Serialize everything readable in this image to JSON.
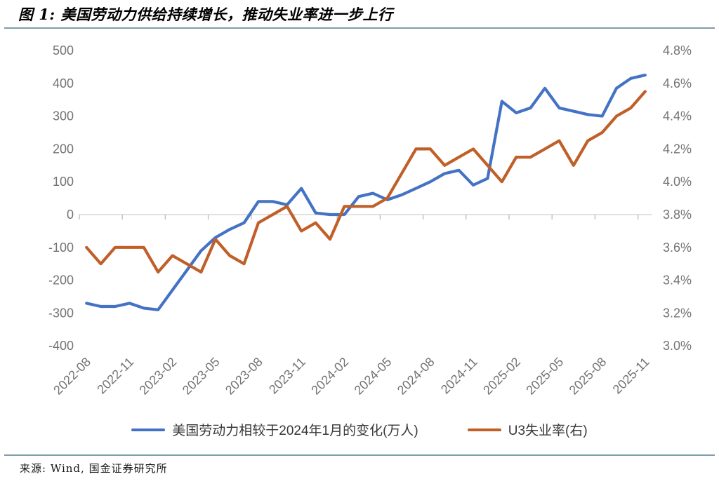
{
  "header": {
    "title": "图 1: 美国劳动力供给持续增长，推动失业率进一步上行"
  },
  "footer": {
    "source": "来源: Wind, 国金证券研究所"
  },
  "colors": {
    "rule": "#7E9DAB",
    "labor_force_line": "#4472C4",
    "u3_line": "#C05F28",
    "axis_text": "#737373",
    "zero_gridline": "#D9D9D9"
  },
  "chart_data": {
    "type": "line",
    "title": "",
    "grid": "zero-line-only",
    "legend_position": "bottom",
    "x": [
      "2022-08",
      "2022-09",
      "2022-10",
      "2022-11",
      "2022-12",
      "2023-01",
      "2023-02",
      "2023-03",
      "2023-04",
      "2023-05",
      "2023-06",
      "2023-07",
      "2023-08",
      "2023-09",
      "2023-10",
      "2023-11",
      "2023-12",
      "2024-01",
      "2024-02",
      "2024-03",
      "2024-04",
      "2024-05",
      "2024-06",
      "2024-07",
      "2024-08",
      "2024-09",
      "2024-10",
      "2024-11",
      "2024-12",
      "2025-01",
      "2025-02",
      "2025-03",
      "2025-04",
      "2025-05",
      "2025-06",
      "2025-07",
      "2025-08",
      "2025-09",
      "2025-10",
      "2025-11"
    ],
    "x_tick_labels": [
      "2022-08",
      "2022-11",
      "2023-02",
      "2023-05",
      "2023-08",
      "2023-11",
      "2024-02",
      "2024-05",
      "2024-08",
      "2024-11",
      "2025-02",
      "2025-05",
      "2025-08",
      "2025-11"
    ],
    "series": [
      {
        "name": "美国劳动力相较于2024年1月的变化(万人)",
        "axis": "left",
        "color": "#4472C4",
        "values": [
          -270,
          -280,
          -280,
          -270,
          -285,
          -290,
          -230,
          -170,
          -110,
          -70,
          -45,
          -25,
          40,
          40,
          30,
          80,
          5,
          0,
          0,
          55,
          65,
          45,
          60,
          80,
          100,
          125,
          135,
          90,
          110,
          345,
          310,
          325,
          385,
          325,
          315,
          305,
          300,
          385,
          415,
          425
        ]
      },
      {
        "name": "U3失业率(右)",
        "axis": "right",
        "color": "#C05F28",
        "values": [
          3.6,
          3.5,
          3.6,
          3.6,
          3.6,
          3.45,
          3.55,
          3.5,
          3.45,
          3.65,
          3.55,
          3.5,
          3.75,
          3.8,
          3.85,
          3.7,
          3.75,
          3.65,
          3.85,
          3.85,
          3.85,
          3.9,
          4.05,
          4.2,
          4.2,
          4.1,
          4.15,
          4.2,
          4.1,
          4.0,
          4.15,
          4.15,
          4.2,
          4.25,
          4.1,
          4.25,
          4.3,
          4.4,
          4.45,
          4.55
        ]
      }
    ],
    "left_axis": {
      "min": -400,
      "max": 500,
      "step": 100,
      "ticks": [
        "500",
        "400",
        "300",
        "200",
        "100",
        "0",
        "-100",
        "-200",
        "-300",
        "-400"
      ]
    },
    "right_axis": {
      "min": 3.0,
      "max": 4.8,
      "step": 0.2,
      "ticks": [
        "4.8%",
        "4.6%",
        "4.4%",
        "4.2%",
        "4.0%",
        "3.8%",
        "3.6%",
        "3.4%",
        "3.2%",
        "3.0%"
      ]
    }
  }
}
